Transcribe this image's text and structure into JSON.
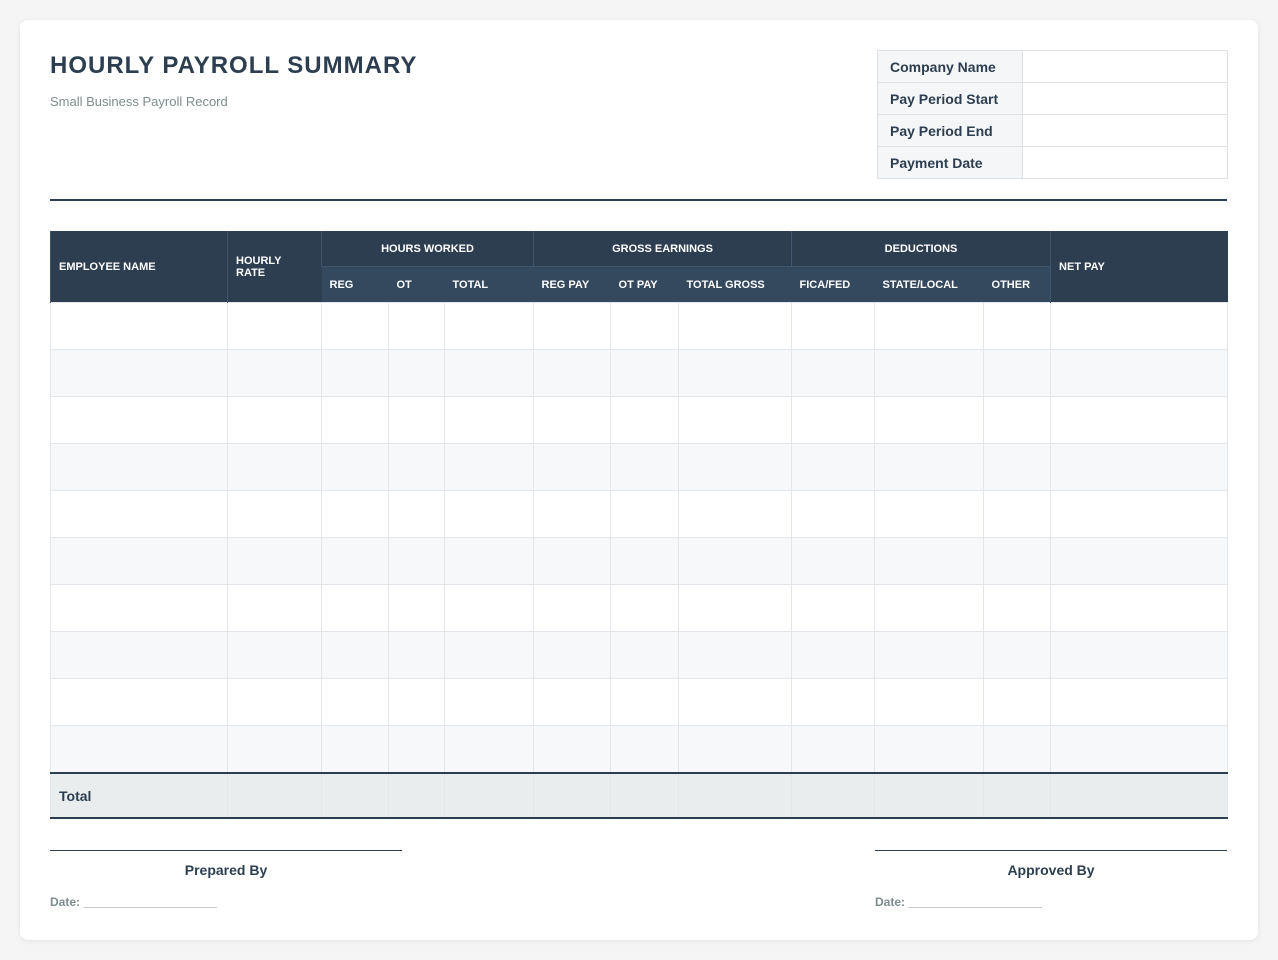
{
  "header": {
    "title": "HOURLY PAYROLL SUMMARY",
    "subtitle": "Small Business Payroll Record"
  },
  "info": {
    "rows": [
      "Company Name",
      "Pay Period Start",
      "Pay Period End",
      "Payment Date"
    ]
  },
  "table": {
    "columns": [
      {
        "label": "EMPLOYEE NAME"
      },
      {
        "label": "HOURLY RATE"
      },
      {
        "group": "HOURS WORKED",
        "columns": [
          "REG",
          "OT",
          "TOTAL"
        ]
      },
      {
        "group": "GROSS EARNINGS",
        "columns": [
          "REG PAY",
          "OT PAY",
          "TOTAL GROSS"
        ]
      },
      {
        "group": "DEDUCTIONS",
        "columns": [
          "FICA/FED",
          "STATE/LOCAL",
          "OTHER"
        ]
      },
      {
        "label": "NET PAY"
      }
    ],
    "total_label": "Total"
  },
  "signatures": [
    {
      "role": "Prepared By",
      "date": "Date: ____________________"
    },
    {
      "role": "Approved By",
      "date": "Date: ____________________"
    }
  ]
}
